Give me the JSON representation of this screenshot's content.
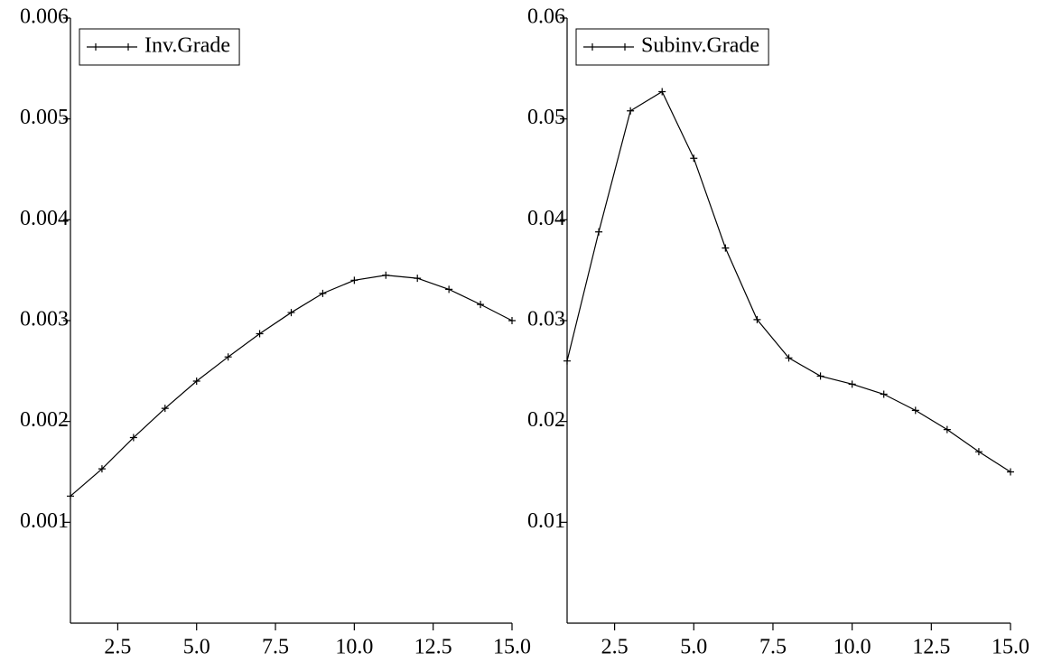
{
  "chart_data": [
    {
      "type": "line",
      "x": [
        1,
        2,
        3,
        4,
        5,
        6,
        7,
        8,
        9,
        10,
        11,
        12,
        13,
        14,
        15
      ],
      "series": [
        {
          "name": "Inv.Grade",
          "color": "#000000",
          "values": [
            0.00126,
            0.00153,
            0.00184,
            0.00213,
            0.0024,
            0.00264,
            0.00287,
            0.00308,
            0.00327,
            0.0034,
            0.00345,
            0.00342,
            0.00331,
            0.00316,
            0.003
          ]
        }
      ],
      "xlim": [
        1,
        15
      ],
      "xticks": [
        2.5,
        {
          "value": 5,
          "label": "5.0"
        },
        7.5,
        {
          "value": 10,
          "label": "10.0"
        },
        12.5,
        {
          "value": 15,
          "label": "15.0"
        }
      ],
      "ylim": [
        0,
        0.006
      ],
      "yticks": [
        0.001,
        0.002,
        0.003,
        0.004,
        0.005,
        0.006
      ],
      "legend": "upper left"
    },
    {
      "type": "line",
      "x": [
        1,
        2,
        3,
        4,
        5,
        6,
        7,
        8,
        9,
        10,
        11,
        12,
        13,
        14,
        15
      ],
      "series": [
        {
          "name": "Subinv.Grade",
          "color": "#000000",
          "values": [
            0.026,
            0.0388,
            0.0508,
            0.0527,
            0.0461,
            0.0372,
            0.0301,
            0.0263,
            0.0245,
            0.0237,
            0.0227,
            0.0211,
            0.0192,
            0.017,
            0.015
          ]
        }
      ],
      "xlim": [
        1,
        15
      ],
      "xticks": [
        2.5,
        {
          "value": 5,
          "label": "5.0"
        },
        7.5,
        {
          "value": 10,
          "label": "10.0"
        },
        12.5,
        {
          "value": 15,
          "label": "15.0"
        }
      ],
      "ylim": [
        0,
        0.06
      ],
      "yticks": [
        0.01,
        0.02,
        0.03,
        0.04,
        0.05,
        0.06
      ],
      "legend": "upper left"
    }
  ]
}
